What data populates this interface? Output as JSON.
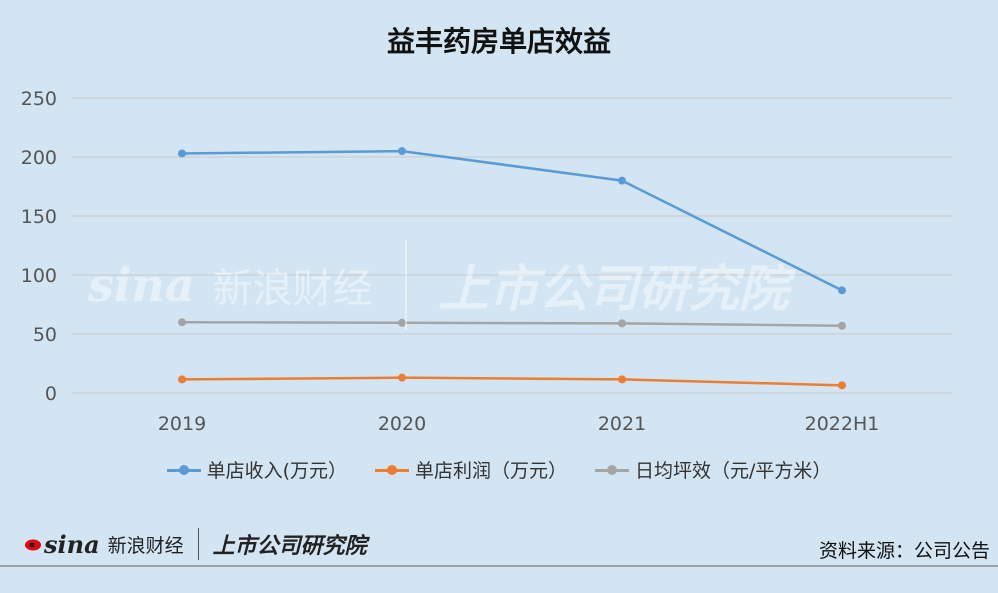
{
  "chart_data": {
    "type": "line",
    "title": "益丰药房单店效益",
    "categories": [
      "2019",
      "2020",
      "2021",
      "2022H1"
    ],
    "series": [
      {
        "name": "单店收入(万元）",
        "color": "#5b9bd5",
        "values": [
          203,
          205,
          180,
          87
        ]
      },
      {
        "name": "单店利润（万元）",
        "color": "#ed7d31",
        "values": [
          11.5,
          13,
          11.5,
          6.5
        ]
      },
      {
        "name": "日均坪效（元/平方米）",
        "color": "#a5a5a5",
        "values": [
          60,
          59.5,
          59,
          57
        ]
      }
    ],
    "y_ticks": [
      "0",
      "50",
      "100",
      "150",
      "200",
      "250"
    ],
    "ylim": [
      0,
      250
    ],
    "grid": true,
    "legend_position": "bottom"
  },
  "footer": {
    "logo_sina": "sina",
    "logo_sina_cn": "新浪财经",
    "logo_research": "上市公司研究院",
    "source": "资料来源：公司公告"
  },
  "watermark": {
    "sina": "sina",
    "sina_cn": "新浪财经",
    "research": "上市公司研究院"
  }
}
